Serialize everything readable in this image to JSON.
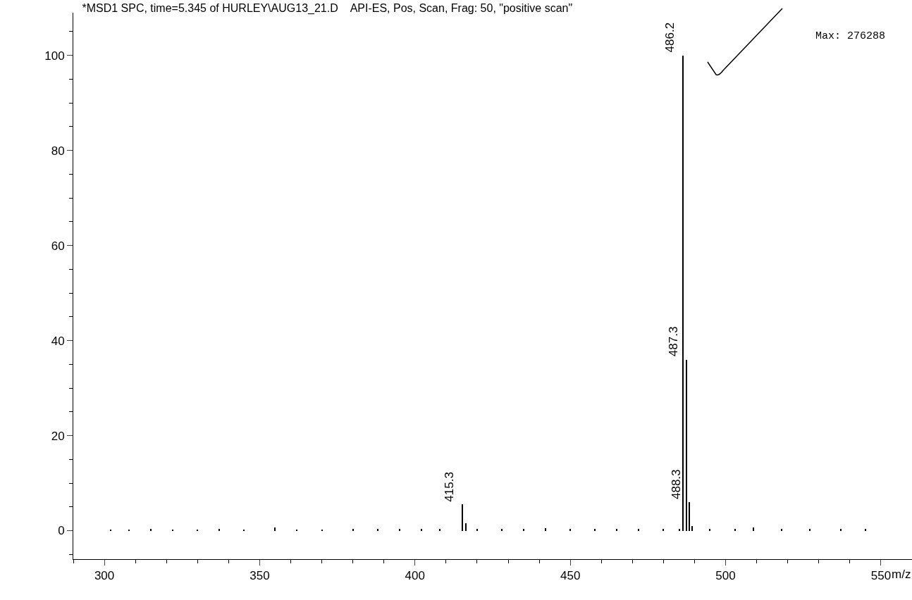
{
  "chart_data": {
    "type": "bar",
    "title": "*MSD1 SPC, time=5.345 of HURLEY\\AUG13_21.D    API-ES, Pos, Scan, Frag: 50, \"positive scan\"",
    "xlabel": "m/z",
    "x": [
      302,
      308,
      315,
      322,
      330,
      337,
      345,
      355,
      362,
      370,
      380,
      388,
      395,
      402,
      408,
      415.3,
      416.3,
      420,
      428,
      435,
      442,
      450,
      458,
      465,
      472,
      480,
      485.2,
      486.2,
      487.3,
      488.3,
      489.3,
      495,
      503,
      509,
      518,
      527,
      537,
      545
    ],
    "values": [
      0.2,
      0.2,
      0.3,
      0.2,
      0.2,
      0.3,
      0.2,
      0.6,
      0.2,
      0.2,
      0.3,
      0.3,
      0.4,
      0.3,
      0.4,
      5.5,
      1.5,
      0.3,
      0.3,
      0.3,
      0.5,
      0.3,
      0.3,
      0.3,
      0.3,
      0.3,
      0.3,
      100,
      36,
      6,
      1,
      0.3,
      0.4,
      0.6,
      0.3,
      0.3,
      0.3,
      0.3
    ],
    "color": "#000000",
    "xlim": [
      290,
      560
    ],
    "xticks": [
      300,
      350,
      400,
      450,
      500,
      550
    ],
    "ylim": [
      -6,
      109
    ],
    "yticks": [
      0,
      20,
      40,
      60,
      80,
      100
    ],
    "grid": false,
    "annotations": [
      {
        "text": "415.3",
        "x": 415.3,
        "y": 5.5
      },
      {
        "text": "486.2",
        "x": 486.2,
        "y": 100
      },
      {
        "text": "487.3",
        "x": 487.3,
        "y": 36
      },
      {
        "text": "488.3",
        "x": 488.3,
        "y": 6
      },
      "Max: 276288"
    ]
  }
}
